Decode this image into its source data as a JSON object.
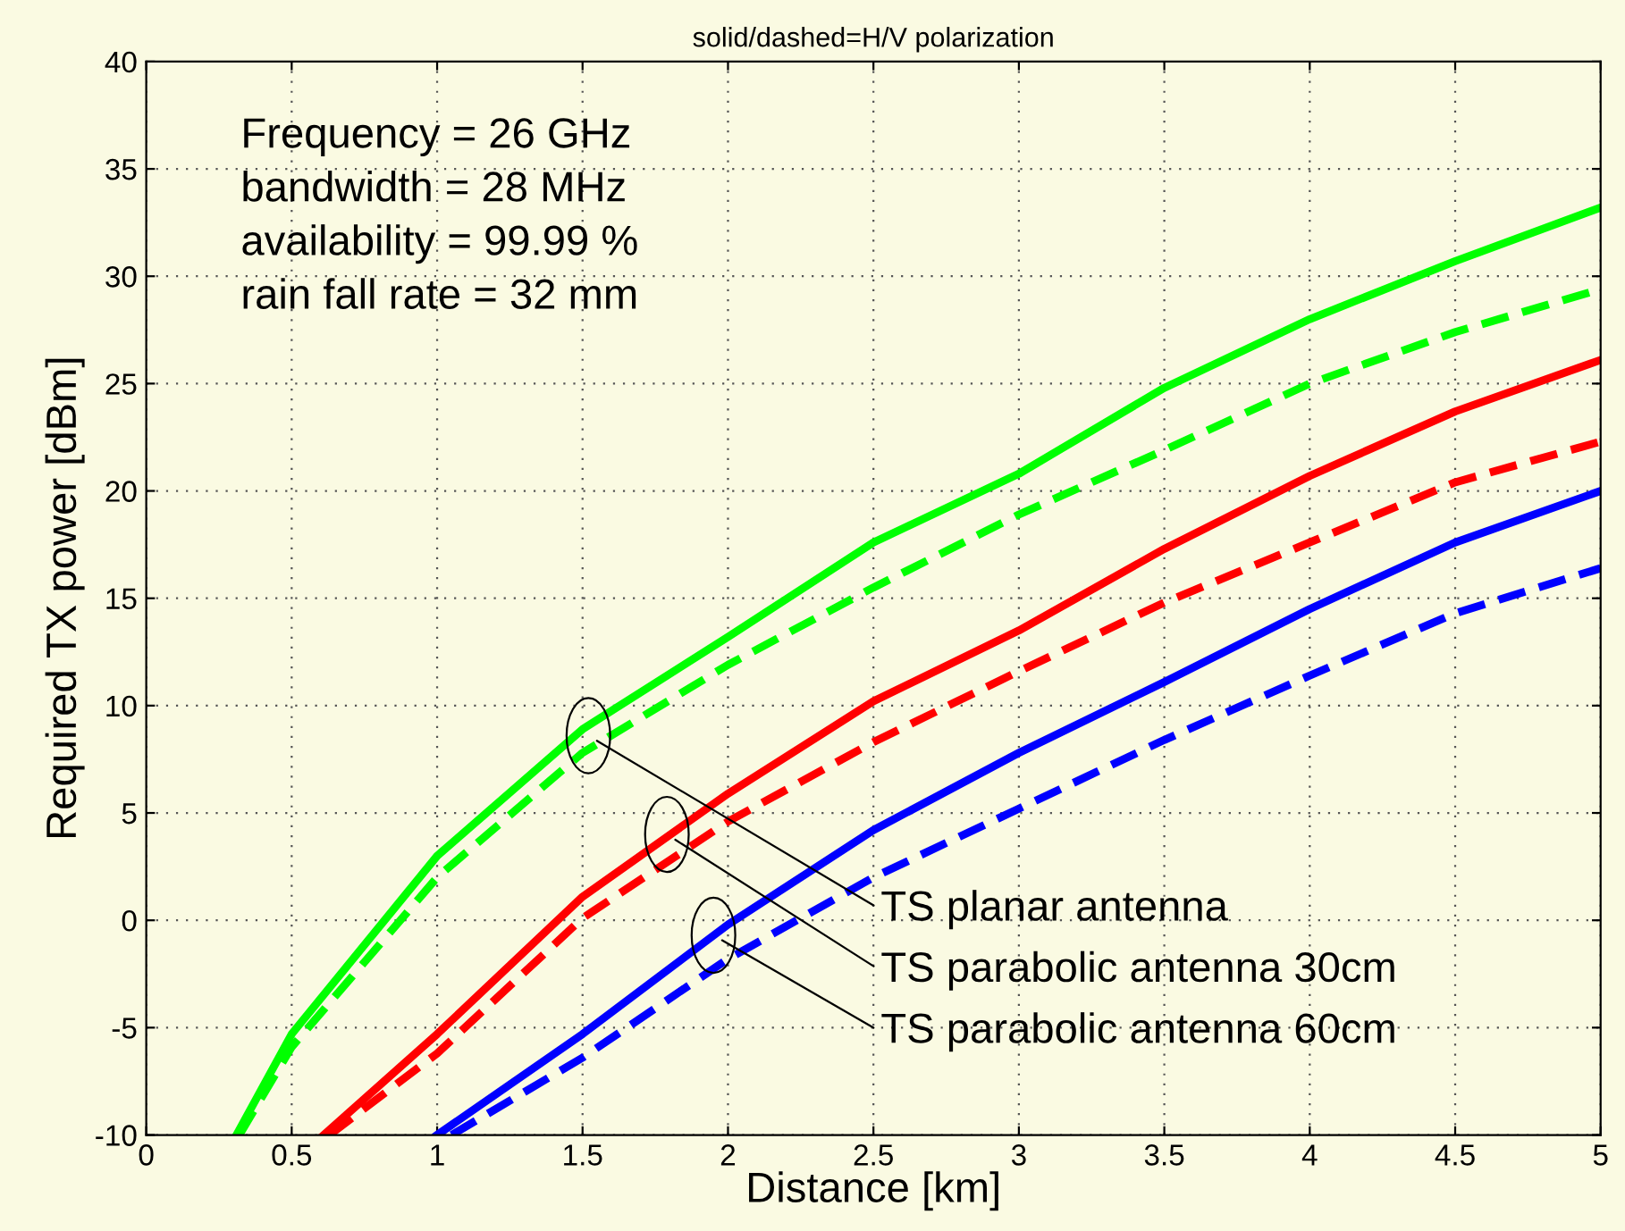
{
  "chart_data": {
    "type": "line",
    "title": "solid/dashed=H/V polarization",
    "xlabel": "Distance [km]",
    "ylabel": "Required TX power [dBm]",
    "xlim": [
      0,
      5
    ],
    "ylim": [
      -10,
      40
    ],
    "xticks": [
      0,
      0.5,
      1,
      1.5,
      2,
      2.5,
      3,
      3.5,
      4,
      4.5,
      5
    ],
    "yticks": [
      -10,
      -5,
      0,
      5,
      10,
      15,
      20,
      25,
      30,
      35,
      40
    ],
    "grid": true,
    "series": [
      {
        "color": "#00ff00",
        "line_style": "solid",
        "x": [
          0.31,
          0.5,
          1,
          1.5,
          2,
          2.5,
          3,
          3.5,
          4,
          4.5,
          5
        ],
        "values": [
          -10,
          -5.3,
          3.0,
          8.9,
          13.2,
          17.6,
          20.8,
          24.8,
          28.0,
          30.7,
          33.2
        ]
      },
      {
        "color": "#00ff00",
        "line_style": "dashed",
        "x": [
          0.32,
          0.5,
          1,
          1.5,
          2,
          2.5,
          3,
          3.5,
          4,
          4.5,
          5
        ],
        "values": [
          -10,
          -5.9,
          2.0,
          7.8,
          11.9,
          15.5,
          18.9,
          21.9,
          25.0,
          27.4,
          29.4
        ]
      },
      {
        "color": "#ff0000",
        "line_style": "solid",
        "x": [
          0.61,
          1,
          1.5,
          2,
          2.5,
          3,
          3.5,
          4,
          4.5,
          5
        ],
        "values": [
          -10,
          -5.3,
          1.1,
          5.9,
          10.2,
          13.5,
          17.3,
          20.7,
          23.7,
          26.1
        ]
      },
      {
        "color": "#ff0000",
        "line_style": "dashed",
        "x": [
          0.63,
          1,
          1.5,
          2,
          2.5,
          3,
          3.5,
          4,
          4.5,
          5
        ],
        "values": [
          -10,
          -6.2,
          0.1,
          4.6,
          8.3,
          11.6,
          14.8,
          17.6,
          20.4,
          22.3
        ]
      },
      {
        "color": "#0000ff",
        "line_style": "solid",
        "x": [
          1.0,
          1.5,
          2,
          2.5,
          3,
          3.5,
          4,
          4.5,
          5
        ],
        "values": [
          -10,
          -5.3,
          -0.2,
          4.2,
          7.8,
          11.1,
          14.5,
          17.6,
          20.0
        ]
      },
      {
        "color": "#0000ff",
        "line_style": "dashed",
        "x": [
          1.05,
          1.5,
          2,
          2.5,
          3,
          3.5,
          4,
          4.5,
          5
        ],
        "values": [
          -10,
          -6.4,
          -1.8,
          2.0,
          5.2,
          8.4,
          11.4,
          14.3,
          16.4
        ]
      }
    ],
    "annotations": [
      "Frequency = 26 GHz",
      "bandwidth = 28 MHz",
      "availability = 99.99 %",
      "rain fall rate = 32 mm",
      {
        "text": "TS planar antenna",
        "x": 1.52,
        "y": 8.6
      },
      {
        "text": "TS parabolic antenna 30cm",
        "x": 1.79,
        "y": 4.0
      },
      {
        "text": "TS parabolic antenna 60cm",
        "x": 1.95,
        "y": -0.7
      }
    ]
  }
}
